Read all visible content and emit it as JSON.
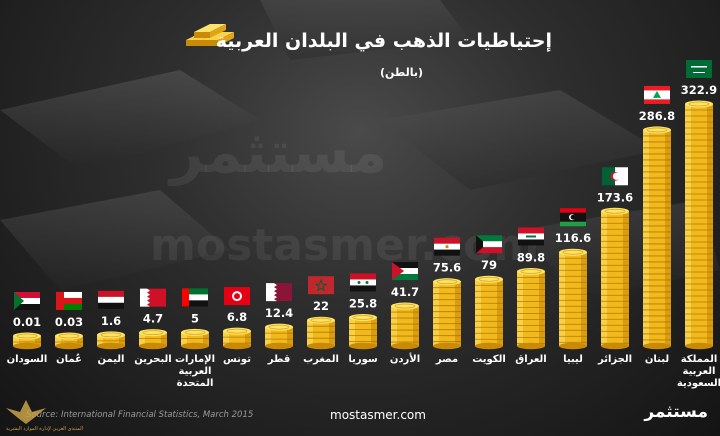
{
  "header": {
    "title": "إحتياطيات الذهب في البلدان العربية",
    "unit": "(بالطن)"
  },
  "watermark": {
    "arabic": "مستثمر",
    "latin": "mostasmer.com"
  },
  "footer": {
    "source": "Source: International Financial Statistics, March 2015",
    "site": "mostasmer.com",
    "logo": "مستثمر",
    "corner_text": "المنتدى العربي لإدارة الموارد البشرية"
  },
  "colors": {
    "coin_light": "#fce46a",
    "coin_mid": "#f2b91c",
    "coin_dark": "#c98a08",
    "label": "#ffffff"
  },
  "chart_data": {
    "type": "bar",
    "title": "إحتياطيات الذهب في البلدان العربية",
    "ylabel": "(بالطن)",
    "categories": [
      "السودان",
      "عُمان",
      "اليمن",
      "البحرين",
      "الإمارات العربية المتحدة",
      "تونس",
      "قطر",
      "المغرب",
      "سوريا",
      "الأردن",
      "مصر",
      "الكويت",
      "العراق",
      "ليبيا",
      "الجزائر",
      "لبنان",
      "المملكة العربية السعودية"
    ],
    "category_lines": [
      [
        "السودان"
      ],
      [
        "عُمان"
      ],
      [
        "اليمن"
      ],
      [
        "البحرين"
      ],
      [
        "الإمارات",
        "العربية",
        "المتحدة"
      ],
      [
        "تونس"
      ],
      [
        "قطر"
      ],
      [
        "المغرب"
      ],
      [
        "سوريا"
      ],
      [
        "الأردن"
      ],
      [
        "مصر"
      ],
      [
        "الكويت"
      ],
      [
        "العراق"
      ],
      [
        "ليبيا"
      ],
      [
        "الجزائر"
      ],
      [
        "لبنان"
      ],
      [
        "المملكة",
        "العربية",
        "السعودية"
      ]
    ],
    "value_labels": [
      "0.01",
      "0.03",
      "1.6",
      "4.7",
      "5",
      "6.8",
      "12.4",
      "22",
      "25.8",
      "41.7",
      "75.6",
      "79",
      "89.8",
      "116.6",
      "173.6",
      "286.8",
      "322.9"
    ],
    "values": [
      0.01,
      0.03,
      1.6,
      4.7,
      5,
      6.8,
      12.4,
      22,
      25.8,
      41.7,
      75.6,
      79,
      89.8,
      116.6,
      173.6,
      286.8,
      322.9
    ],
    "flags": [
      "sudan-flag",
      "oman-flag",
      "yemen-flag",
      "bahrain-flag",
      "uae-flag",
      "tunisia-flag",
      "qatar-flag",
      "morocco-flag",
      "syria-flag",
      "jordan-flag",
      "egypt-flag",
      "kuwait-flag",
      "iraq-flag",
      "libya-flag",
      "algeria-flag",
      "lebanon-flag",
      "saudi-flag"
    ],
    "ylim": [
      0,
      322.9
    ]
  }
}
